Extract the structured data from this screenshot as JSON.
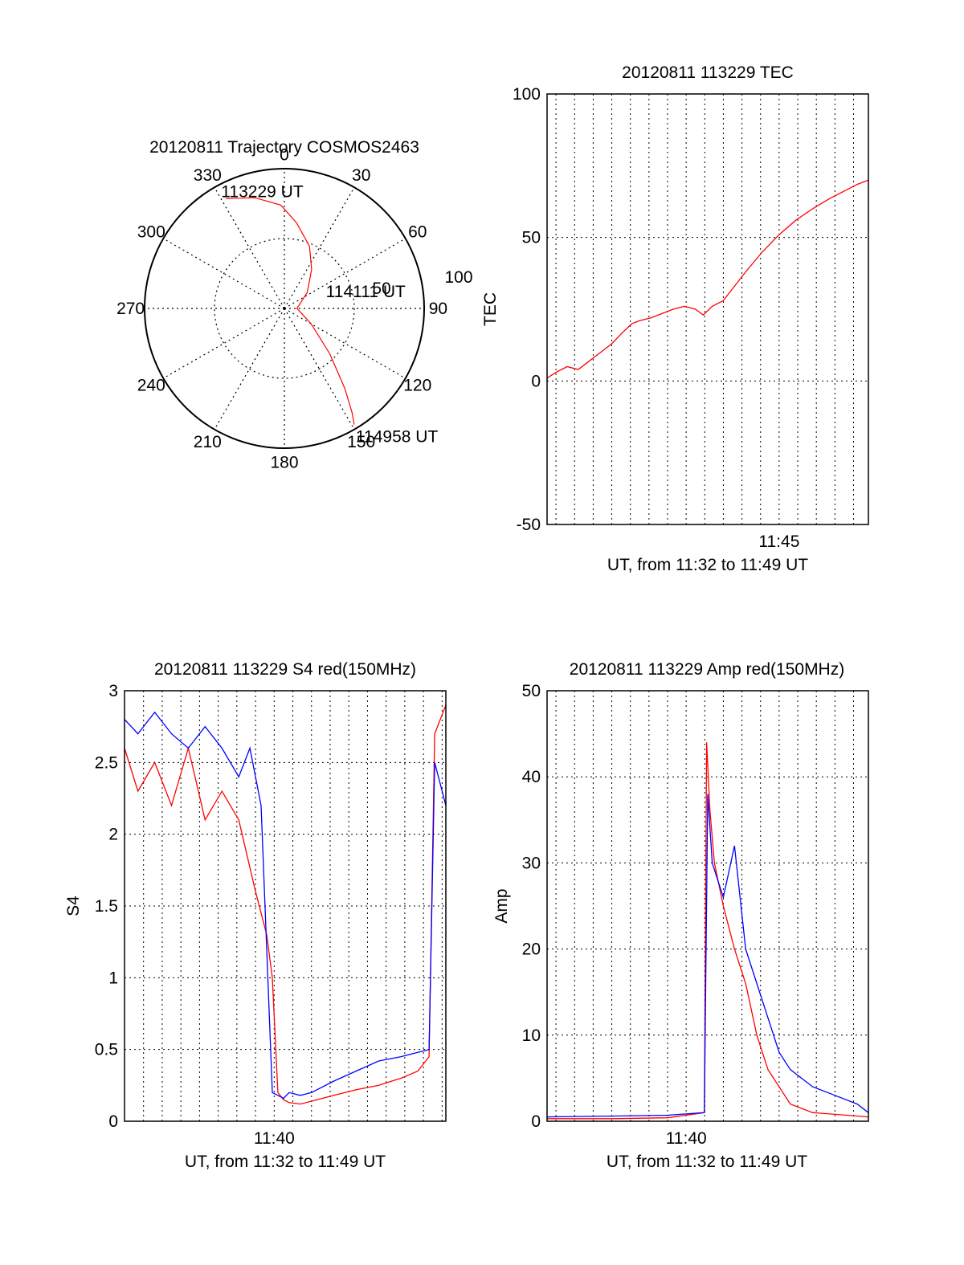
{
  "colors": {
    "primary_series": "#ff0000",
    "secondary_series": "#0000ff",
    "axes": "#000000",
    "grid": "#000000"
  },
  "chart_data": [
    {
      "type": "polar-trajectory",
      "title": "20120811 Trajectory COSMOS2463",
      "azimuth_labels": [
        "0",
        "30",
        "60",
        "90",
        "120",
        "150",
        "180",
        "210",
        "240",
        "270",
        "300",
        "330"
      ],
      "radial_labels": [
        "50",
        "100"
      ],
      "radial_range": [
        0,
        100
      ],
      "grid": true,
      "track": {
        "points": [
          [
            332,
            89
          ],
          [
            345,
            82
          ],
          [
            358,
            74
          ],
          [
            8,
            62
          ],
          [
            22,
            48
          ],
          [
            35,
            34
          ],
          [
            55,
            20
          ],
          [
            90,
            9
          ],
          [
            120,
            22
          ],
          [
            135,
            46
          ],
          [
            143,
            72
          ],
          [
            147,
            89
          ],
          [
            149,
            97
          ]
        ],
        "annotations": [
          {
            "label": "113229 UT",
            "point_index": 0
          },
          {
            "label": "114111 UT",
            "point_index": 7
          },
          {
            "label": "114958 UT",
            "point_index": 12
          }
        ]
      }
    },
    {
      "type": "line",
      "title": "20120811 113229 TEC",
      "xlabel": "UT, from 11:32 to 11:49 UT",
      "ylabel": "TEC",
      "xlim": [
        11.542,
        11.83
      ],
      "ylim": [
        -50,
        100
      ],
      "yticks": [
        -50,
        0,
        50,
        100
      ],
      "xticks": [
        {
          "value": 11.75,
          "label": "11:45"
        }
      ],
      "grid": true,
      "series": [
        {
          "color": "#ff0000",
          "x": [
            11.542,
            11.55,
            11.56,
            11.57,
            11.58,
            11.59,
            11.6,
            11.61,
            11.618,
            11.625,
            11.635,
            11.645,
            11.655,
            11.665,
            11.675,
            11.682,
            11.69,
            11.7,
            11.71,
            11.72,
            11.735,
            11.75,
            11.765,
            11.78,
            11.795,
            11.81,
            11.82,
            11.83
          ],
          "values": [
            1,
            3,
            5,
            4,
            7,
            10,
            13,
            17,
            20,
            21,
            22,
            23.5,
            25,
            26,
            25,
            23,
            26,
            28,
            33,
            38,
            45,
            51,
            56,
            60,
            63.5,
            66.5,
            68.5,
            70
          ]
        }
      ]
    },
    {
      "type": "line",
      "title": "20120811 113229 S4 red(150MHz)",
      "xlabel": "UT, from 11:32 to 11:49 UT",
      "ylabel": "S4",
      "xlim": [
        11.533,
        11.82
      ],
      "ylim": [
        0,
        3
      ],
      "yticks": [
        0,
        0.5,
        1,
        1.5,
        2,
        2.5,
        3
      ],
      "yticklabels": [
        "0",
        "0.5",
        "1",
        "1.5",
        "2",
        "2.5",
        "3"
      ],
      "xticks": [
        {
          "value": 11.6667,
          "label": "11:40"
        }
      ],
      "grid": true,
      "series": [
        {
          "color": "#ff0000",
          "x": [
            11.533,
            11.545,
            11.56,
            11.575,
            11.59,
            11.605,
            11.62,
            11.635,
            11.65,
            11.66,
            11.665,
            11.67,
            11.675,
            11.68,
            11.69,
            11.7,
            11.72,
            11.74,
            11.76,
            11.78,
            11.795,
            11.805,
            11.81,
            11.82
          ],
          "values": [
            2.6,
            2.3,
            2.5,
            2.2,
            2.6,
            2.1,
            2.3,
            2.1,
            1.6,
            1.3,
            1.0,
            0.2,
            0.15,
            0.13,
            0.12,
            0.14,
            0.18,
            0.22,
            0.25,
            0.3,
            0.35,
            0.45,
            2.7,
            2.9
          ]
        },
        {
          "color": "#0000ff",
          "x": [
            11.533,
            11.545,
            11.56,
            11.575,
            11.59,
            11.605,
            11.62,
            11.635,
            11.645,
            11.655,
            11.665,
            11.67,
            11.675,
            11.68,
            11.69,
            11.7,
            11.72,
            11.74,
            11.76,
            11.78,
            11.795,
            11.805,
            11.81,
            11.82
          ],
          "values": [
            2.8,
            2.7,
            2.85,
            2.7,
            2.6,
            2.75,
            2.6,
            2.4,
            2.6,
            2.2,
            0.2,
            0.18,
            0.16,
            0.2,
            0.18,
            0.2,
            0.28,
            0.35,
            0.42,
            0.45,
            0.48,
            0.5,
            2.5,
            2.2
          ]
        }
      ]
    },
    {
      "type": "line",
      "title": "20120811 113229 Amp red(150MHz)",
      "xlabel": "UT, from 11:32 to 11:49 UT",
      "ylabel": "Amp",
      "xlim": [
        11.542,
        11.83
      ],
      "ylim": [
        0,
        50
      ],
      "yticks": [
        0,
        10,
        20,
        30,
        40,
        50
      ],
      "xticks": [
        {
          "value": 11.6667,
          "label": "11:40"
        }
      ],
      "grid": true,
      "series": [
        {
          "color": "#ff0000",
          "x": [
            11.542,
            11.6,
            11.65,
            11.683,
            11.685,
            11.688,
            11.692,
            11.7,
            11.71,
            11.72,
            11.73,
            11.74,
            11.76,
            11.78,
            11.8,
            11.83
          ],
          "values": [
            0.3,
            0.3,
            0.4,
            1,
            44,
            36,
            30,
            25,
            20,
            16,
            10,
            6,
            2,
            1,
            0.8,
            0.5
          ]
        },
        {
          "color": "#0000ff",
          "x": [
            11.542,
            11.6,
            11.65,
            11.683,
            11.686,
            11.69,
            11.7,
            11.71,
            11.72,
            11.73,
            11.74,
            11.75,
            11.76,
            11.78,
            11.8,
            11.82,
            11.83
          ],
          "values": [
            0.5,
            0.6,
            0.7,
            1,
            38,
            30,
            26,
            32,
            20,
            16,
            12,
            8,
            6,
            4,
            3,
            2,
            1
          ]
        }
      ]
    }
  ]
}
